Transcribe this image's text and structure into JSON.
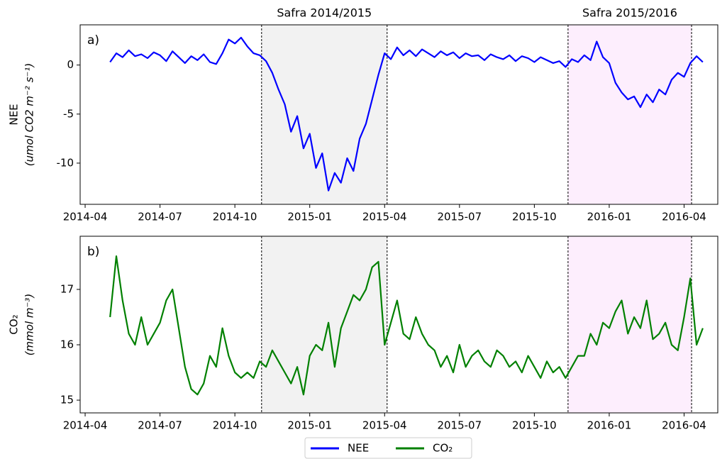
{
  "chart_data": [
    {
      "type": "line",
      "panel_label": "a)",
      "ylabel": [
        "NEE",
        "(umol CO2 m⁻² s⁻¹)"
      ],
      "annotations": [
        {
          "text": "Safra 2014/2015",
          "span": 0
        },
        {
          "text": "Safra 2015/2016",
          "span": 1
        }
      ],
      "spans": [
        {
          "start": 7.07,
          "end": 12.1,
          "color": "#f2f2f2"
        },
        {
          "start": 19.35,
          "end": 24.3,
          "color": "#fdeefd"
        }
      ],
      "xlim": [
        -0.2,
        25.35
      ],
      "xticks": [
        {
          "value": 0,
          "label": "2014-04"
        },
        {
          "value": 3,
          "label": "2014-07"
        },
        {
          "value": 6,
          "label": "2014-10"
        },
        {
          "value": 9,
          "label": "2015-01"
        },
        {
          "value": 12,
          "label": "2015-04"
        },
        {
          "value": 15,
          "label": "2015-07"
        },
        {
          "value": 18,
          "label": "2015-10"
        },
        {
          "value": 21,
          "label": "2016-01"
        },
        {
          "value": 24,
          "label": "2016-04"
        }
      ],
      "ylim": [
        -14.2,
        4.1
      ],
      "yticks": [
        -10,
        -5,
        0
      ],
      "x": [
        1,
        1.25,
        1.5,
        1.75,
        2,
        2.25,
        2.5,
        2.75,
        3,
        3.25,
        3.5,
        3.75,
        4,
        4.25,
        4.5,
        4.75,
        5,
        5.25,
        5.5,
        5.75,
        6,
        6.25,
        6.5,
        6.75,
        7,
        7.25,
        7.5,
        7.75,
        8,
        8.25,
        8.5,
        8.75,
        9,
        9.25,
        9.5,
        9.75,
        10,
        10.25,
        10.5,
        10.75,
        11,
        11.25,
        11.5,
        11.75,
        12,
        12.25,
        12.5,
        12.75,
        13,
        13.25,
        13.5,
        13.75,
        14,
        14.25,
        14.5,
        14.75,
        15,
        15.25,
        15.5,
        15.75,
        16,
        16.25,
        16.5,
        16.75,
        17,
        17.25,
        17.5,
        17.75,
        18,
        18.25,
        18.5,
        18.75,
        19,
        19.25,
        19.5,
        19.75,
        20,
        20.25,
        20.5,
        20.75,
        21,
        21.25,
        21.5,
        21.75,
        22,
        22.25,
        22.5,
        22.75,
        23,
        23.25,
        23.5,
        23.75,
        24,
        24.25,
        24.5,
        24.75
      ],
      "series": [
        {
          "name": "NEE",
          "color": "#0000ff",
          "values": [
            0.3,
            1.2,
            0.8,
            1.5,
            0.9,
            1.1,
            0.7,
            1.3,
            1.0,
            0.4,
            1.4,
            0.8,
            0.2,
            0.9,
            0.5,
            1.1,
            0.3,
            0.1,
            1.2,
            2.6,
            2.2,
            2.8,
            1.9,
            1.2,
            1.0,
            0.4,
            -0.8,
            -2.5,
            -4.0,
            -6.8,
            -5.2,
            -8.5,
            -7.0,
            -10.5,
            -9.0,
            -12.8,
            -11.0,
            -12.0,
            -9.5,
            -10.8,
            -7.5,
            -6.0,
            -3.5,
            -1.0,
            1.2,
            0.6,
            1.8,
            1.0,
            1.5,
            0.9,
            1.6,
            1.2,
            0.8,
            1.4,
            1.0,
            1.3,
            0.7,
            1.2,
            0.9,
            1.0,
            0.5,
            1.1,
            0.8,
            0.6,
            1.0,
            0.4,
            0.9,
            0.7,
            0.3,
            0.8,
            0.5,
            0.2,
            0.4,
            -0.2,
            0.6,
            0.3,
            1.0,
            0.5,
            2.4,
            0.8,
            0.2,
            -1.8,
            -2.8,
            -3.5,
            -3.2,
            -4.3,
            -3.0,
            -3.8,
            -2.5,
            -3.0,
            -1.5,
            -0.8,
            -1.2,
            0.2,
            0.9,
            0.3
          ]
        }
      ]
    },
    {
      "type": "line",
      "panel_label": "b)",
      "ylabel": [
        "CO₂",
        "(mmol m⁻³)"
      ],
      "spans": [
        {
          "start": 7.07,
          "end": 12.1,
          "color": "#f2f2f2"
        },
        {
          "start": 19.35,
          "end": 24.3,
          "color": "#fdeefd"
        }
      ],
      "xlim": [
        -0.2,
        25.35
      ],
      "xticks": [
        {
          "value": 0,
          "label": "2014-04"
        },
        {
          "value": 3,
          "label": "2014-07"
        },
        {
          "value": 6,
          "label": "2014-10"
        },
        {
          "value": 9,
          "label": "2015-01"
        },
        {
          "value": 12,
          "label": "2015-04"
        },
        {
          "value": 15,
          "label": "2015-07"
        },
        {
          "value": 18,
          "label": "2015-10"
        },
        {
          "value": 21,
          "label": "2016-01"
        },
        {
          "value": 24,
          "label": "2016-04"
        }
      ],
      "ylim": [
        14.77,
        17.96
      ],
      "yticks": [
        15,
        16,
        17
      ],
      "x": [
        1,
        1.25,
        1.5,
        1.75,
        2,
        2.25,
        2.5,
        2.75,
        3,
        3.25,
        3.5,
        3.75,
        4,
        4.25,
        4.5,
        4.75,
        5,
        5.25,
        5.5,
        5.75,
        6,
        6.25,
        6.5,
        6.75,
        7,
        7.25,
        7.5,
        7.75,
        8,
        8.25,
        8.5,
        8.75,
        9,
        9.25,
        9.5,
        9.75,
        10,
        10.25,
        10.5,
        10.75,
        11,
        11.25,
        11.5,
        11.75,
        12,
        12.25,
        12.5,
        12.75,
        13,
        13.25,
        13.5,
        13.75,
        14,
        14.25,
        14.5,
        14.75,
        15,
        15.25,
        15.5,
        15.75,
        16,
        16.25,
        16.5,
        16.75,
        17,
        17.25,
        17.5,
        17.75,
        18,
        18.25,
        18.5,
        18.75,
        19,
        19.25,
        19.5,
        19.75,
        20,
        20.25,
        20.5,
        20.75,
        21,
        21.25,
        21.5,
        21.75,
        22,
        22.25,
        22.5,
        22.75,
        23,
        23.25,
        23.5,
        23.75,
        24,
        24.25,
        24.5,
        24.75
      ],
      "series": [
        {
          "name": "CO₂",
          "color": "#008000",
          "values": [
            16.5,
            17.6,
            16.8,
            16.2,
            16.0,
            16.5,
            16.0,
            16.2,
            16.4,
            16.8,
            17.0,
            16.3,
            15.6,
            15.2,
            15.1,
            15.3,
            15.8,
            15.6,
            16.3,
            15.8,
            15.5,
            15.4,
            15.5,
            15.4,
            15.7,
            15.6,
            15.9,
            15.7,
            15.5,
            15.3,
            15.6,
            15.1,
            15.8,
            16.0,
            15.9,
            16.4,
            15.6,
            16.3,
            16.6,
            16.9,
            16.8,
            17.0,
            17.4,
            17.5,
            16.0,
            16.4,
            16.8,
            16.2,
            16.1,
            16.5,
            16.2,
            16.0,
            15.9,
            15.6,
            15.8,
            15.5,
            16.0,
            15.6,
            15.8,
            15.9,
            15.7,
            15.6,
            15.9,
            15.8,
            15.6,
            15.7,
            15.5,
            15.8,
            15.6,
            15.4,
            15.7,
            15.5,
            15.6,
            15.4,
            15.6,
            15.8,
            15.8,
            16.2,
            16.0,
            16.4,
            16.3,
            16.6,
            16.8,
            16.2,
            16.5,
            16.3,
            16.8,
            16.1,
            16.2,
            16.4,
            16.0,
            15.9,
            16.5,
            17.2,
            16.0,
            16.3
          ]
        }
      ]
    }
  ]
}
